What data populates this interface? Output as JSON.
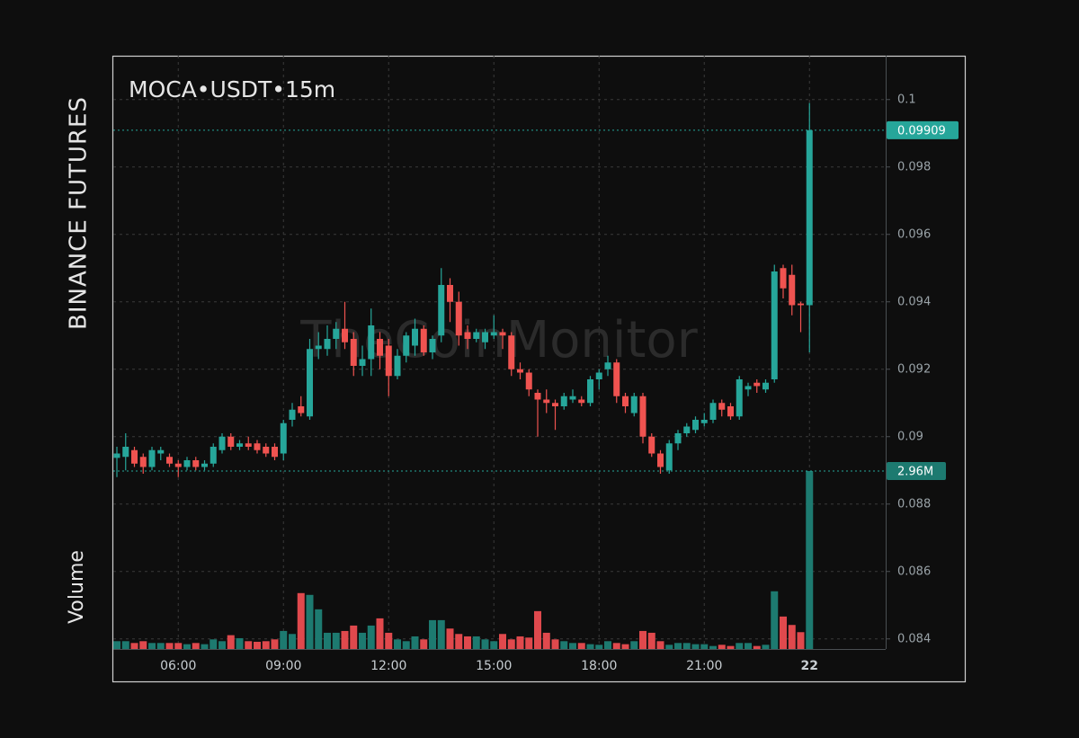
{
  "chart_data": {
    "type": "candlestick",
    "title": "MOCA•USDT•15m",
    "exchange": "BINANCE FUTURES",
    "watermark": "TheCoinMonitor",
    "categories": [
      null,
      null,
      null,
      null,
      null,
      null,
      null,
      "06:00",
      null,
      null,
      null,
      null,
      null,
      null,
      null,
      null,
      null,
      null,
      null,
      "09:00",
      null,
      null,
      null,
      null,
      null,
      null,
      null,
      null,
      null,
      null,
      null,
      "12:00",
      null,
      null,
      null,
      null,
      null,
      null,
      null,
      null,
      null,
      null,
      null,
      "15:00",
      null,
      null,
      null,
      null,
      null,
      null,
      null,
      null,
      null,
      null,
      null,
      "18:00",
      null,
      null,
      null,
      null,
      null,
      null,
      null,
      null,
      null,
      null,
      null,
      "21:00",
      null,
      null,
      null,
      null,
      null,
      null,
      null,
      null,
      null,
      null,
      null,
      "22"
    ],
    "open": [
      0.08937,
      0.0894,
      0.0896,
      0.0894,
      0.0891,
      0.0895,
      0.0894,
      0.0892,
      0.0891,
      0.0893,
      0.0891,
      0.0892,
      0.0896,
      0.09,
      0.0897,
      0.0898,
      0.0898,
      0.0897,
      0.0897,
      0.0895,
      0.0905,
      0.0909,
      0.0906,
      0.0926,
      0.0926,
      0.0929,
      0.0932,
      0.0929,
      0.0921,
      0.0923,
      0.0929,
      0.0927,
      0.0918,
      0.0924,
      0.0927,
      0.0932,
      0.0925,
      0.093,
      0.0945,
      0.094,
      0.0931,
      0.0929,
      0.0928,
      0.093,
      0.0931,
      0.093,
      0.092,
      0.0919,
      0.0913,
      0.0911,
      0.091,
      0.0909,
      0.0911,
      0.0911,
      0.091,
      0.0917,
      0.092,
      0.0922,
      0.0912,
      0.0907,
      0.0912,
      0.09,
      0.0895,
      0.089,
      0.0898,
      0.0901,
      0.0902,
      0.0904,
      0.0905,
      0.091,
      0.0909,
      0.0906,
      0.0914,
      0.0916,
      0.0914,
      0.0917,
      0.095,
      0.0948,
      0.09395,
      0.0939
    ],
    "high": [
      0.0897,
      0.0901,
      0.0897,
      0.0895,
      0.0897,
      0.0897,
      0.0895,
      0.0893,
      0.0894,
      0.0894,
      0.0893,
      0.0898,
      0.0901,
      0.0901,
      0.0899,
      0.09,
      0.0899,
      0.0898,
      0.0898,
      0.0905,
      0.091,
      0.0912,
      0.0929,
      0.0931,
      0.0933,
      0.0934,
      0.094,
      0.0931,
      0.0927,
      0.0938,
      0.0931,
      0.0929,
      0.0926,
      0.0931,
      0.0935,
      0.0933,
      0.093,
      0.095,
      0.0947,
      0.0943,
      0.0933,
      0.0932,
      0.0932,
      0.0936,
      0.0932,
      0.0931,
      0.0922,
      0.092,
      0.0914,
      0.0914,
      0.0911,
      0.0913,
      0.0914,
      0.0912,
      0.0918,
      0.092,
      0.0924,
      0.0923,
      0.0913,
      0.0913,
      0.0913,
      0.0901,
      0.0896,
      0.0899,
      0.0902,
      0.0904,
      0.0906,
      0.0907,
      0.0911,
      0.0911,
      0.091,
      0.0918,
      0.0916,
      0.0917,
      0.0917,
      0.0951,
      0.0951,
      0.0951,
      0.094,
      0.0999
    ],
    "low": [
      0.0888,
      0.089,
      0.0891,
      0.0889,
      0.089,
      0.0893,
      0.0891,
      0.0888,
      0.089,
      0.089,
      0.089,
      0.0891,
      0.0895,
      0.0896,
      0.0896,
      0.0896,
      0.0895,
      0.0894,
      0.0893,
      0.0893,
      0.0903,
      0.0906,
      0.0905,
      0.0923,
      0.0924,
      0.0926,
      0.0926,
      0.0918,
      0.0918,
      0.0918,
      0.092,
      0.0912,
      0.0917,
      0.0922,
      0.0924,
      0.0924,
      0.0923,
      0.0928,
      0.0934,
      0.0927,
      0.0926,
      0.0928,
      0.0926,
      0.0929,
      0.0926,
      0.0918,
      0.0917,
      0.0912,
      0.09,
      0.0907,
      0.0902,
      0.0908,
      0.091,
      0.0909,
      0.0909,
      0.0914,
      0.0918,
      0.091,
      0.0907,
      0.0906,
      0.0898,
      0.0894,
      0.0889,
      0.0889,
      0.0896,
      0.09,
      0.0901,
      0.0903,
      0.0904,
      0.0906,
      0.0905,
      0.0905,
      0.0912,
      0.0913,
      0.0913,
      0.0916,
      0.0941,
      0.0936,
      0.0931,
      0.0925
    ],
    "close": [
      0.0895,
      0.0897,
      0.0892,
      0.0891,
      0.0896,
      0.0896,
      0.0892,
      0.0891,
      0.0893,
      0.0891,
      0.0892,
      0.0897,
      0.09,
      0.0897,
      0.0898,
      0.0897,
      0.0896,
      0.0895,
      0.0894,
      0.0904,
      0.0908,
      0.0907,
      0.0926,
      0.0927,
      0.0929,
      0.0932,
      0.0928,
      0.0921,
      0.0923,
      0.0933,
      0.0924,
      0.0918,
      0.0924,
      0.093,
      0.0932,
      0.0925,
      0.0929,
      0.0945,
      0.094,
      0.093,
      0.0929,
      0.0931,
      0.0931,
      0.0931,
      0.093,
      0.092,
      0.0919,
      0.0914,
      0.0911,
      0.091,
      0.0909,
      0.0912,
      0.0912,
      0.091,
      0.0917,
      0.0919,
      0.0922,
      0.0912,
      0.0909,
      0.0912,
      0.09,
      0.0895,
      0.0891,
      0.0898,
      0.0901,
      0.0903,
      0.0905,
      0.0905,
      0.091,
      0.0908,
      0.0906,
      0.0917,
      0.0915,
      0.0915,
      0.0916,
      0.0949,
      0.0944,
      0.0939,
      0.0939,
      0.09909
    ],
    "volume": {
      "name": "Volume",
      "values": [
        130000,
        130000,
        100000,
        130000,
        100000,
        100000,
        100000,
        100000,
        80000,
        100000,
        80000,
        160000,
        130000,
        230000,
        180000,
        130000,
        120000,
        130000,
        160000,
        300000,
        250000,
        930000,
        900000,
        660000,
        270000,
        270000,
        300000,
        390000,
        270000,
        390000,
        510000,
        270000,
        160000,
        130000,
        210000,
        160000,
        480000,
        480000,
        340000,
        250000,
        210000,
        210000,
        160000,
        130000,
        250000,
        160000,
        210000,
        190000,
        630000,
        270000,
        160000,
        130000,
        100000,
        100000,
        80000,
        70000,
        130000,
        100000,
        80000,
        130000,
        300000,
        270000,
        130000,
        70000,
        100000,
        100000,
        80000,
        80000,
        50000,
        70000,
        50000,
        100000,
        100000,
        50000,
        70000,
        960000,
        540000,
        400000,
        280000,
        2960000
      ],
      "last_label": "2.96M",
      "up_color": "#1d7a70",
      "down_color": "#e0494d"
    },
    "up_color": "#26a69a",
    "down_color": "#ef5350",
    "ylim": [
      0.0837,
      0.1013
    ],
    "yticks": [
      0.084,
      0.086,
      0.088,
      0.09,
      0.092,
      0.094,
      0.096,
      0.098,
      0.1
    ],
    "grid": true
  }
}
